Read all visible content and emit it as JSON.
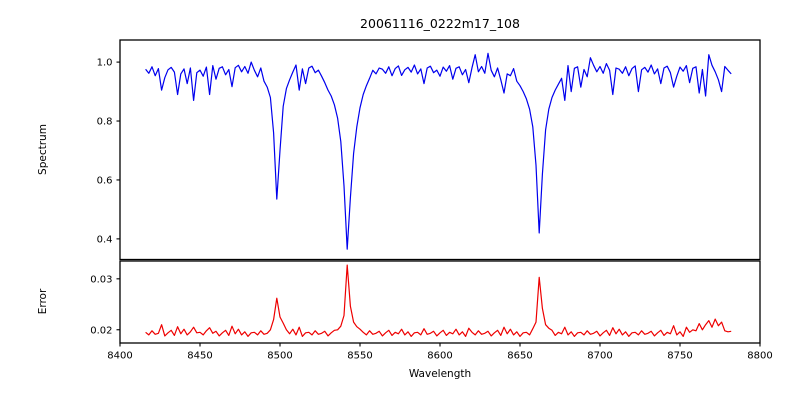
{
  "chart_data": {
    "type": "line",
    "title": "20061116_0222m17_108",
    "xlabel": "Wavelength",
    "xlim": [
      8400,
      8800
    ],
    "xticks": [
      8400,
      8450,
      8500,
      8550,
      8600,
      8650,
      8700,
      8750,
      8800
    ],
    "x_start": 8416,
    "x_step": 2,
    "grid": false,
    "legend": "none",
    "annotations": {
      "absorption_line_centers": [
        8498,
        8542,
        8662
      ],
      "absorption_line_minima": [
        0.535,
        0.365,
        0.42
      ],
      "error_peak_values": [
        0.0262,
        0.0327,
        0.0303
      ],
      "error_baseline": 0.0195,
      "spectrum_continuum": 0.97
    },
    "subplots": [
      {
        "name": "spectrum",
        "ylabel": "Spectrum",
        "color": "#0000ee",
        "ylim": [
          0.33,
          1.075
        ],
        "yticks": [
          {
            "v": 1.0,
            "label": "1.0"
          },
          {
            "v": 0.8,
            "label": "0.8"
          },
          {
            "v": 0.6,
            "label": "0.6"
          },
          {
            "v": 0.4,
            "label": "0.4"
          }
        ],
        "y": [
          0.976,
          0.962,
          0.984,
          0.954,
          0.978,
          0.905,
          0.947,
          0.974,
          0.982,
          0.966,
          0.89,
          0.96,
          0.977,
          0.927,
          0.98,
          0.87,
          0.964,
          0.973,
          0.952,
          0.983,
          0.89,
          0.988,
          0.942,
          0.979,
          0.984,
          0.957,
          0.975,
          0.917,
          0.981,
          0.989,
          0.967,
          0.985,
          0.962,
          1.0,
          0.972,
          0.95,
          0.98,
          0.935,
          0.915,
          0.88,
          0.76,
          0.535,
          0.7,
          0.85,
          0.91,
          0.94,
          0.966,
          0.99,
          0.905,
          0.977,
          0.927,
          0.98,
          0.986,
          0.964,
          0.973,
          0.952,
          0.93,
          0.905,
          0.885,
          0.855,
          0.81,
          0.73,
          0.58,
          0.365,
          0.54,
          0.69,
          0.78,
          0.845,
          0.89,
          0.92,
          0.945,
          0.972,
          0.96,
          0.98,
          0.976,
          0.962,
          0.984,
          0.954,
          0.978,
          0.987,
          0.955,
          0.974,
          0.982,
          0.966,
          0.99,
          0.96,
          0.977,
          0.927,
          0.98,
          0.986,
          0.964,
          0.973,
          0.952,
          0.983,
          0.969,
          0.988,
          0.942,
          0.979,
          0.984,
          0.957,
          0.975,
          0.93,
          0.981,
          1.025,
          0.967,
          0.985,
          0.962,
          1.03,
          0.972,
          0.95,
          0.98,
          0.94,
          0.895,
          0.96,
          0.954,
          0.978,
          0.935,
          0.92,
          0.9,
          0.875,
          0.84,
          0.78,
          0.65,
          0.42,
          0.62,
          0.77,
          0.84,
          0.88,
          0.905,
          0.925,
          0.945,
          0.87,
          0.988,
          0.9,
          0.979,
          0.984,
          0.915,
          0.975,
          0.95,
          1.015,
          0.989,
          0.967,
          0.985,
          0.962,
          0.995,
          0.972,
          0.89,
          0.98,
          0.976,
          0.962,
          0.984,
          0.954,
          0.978,
          0.987,
          0.9,
          0.974,
          0.982,
          0.966,
          0.99,
          0.96,
          0.977,
          0.927,
          0.98,
          0.986,
          0.964,
          0.915,
          0.952,
          0.983,
          0.969,
          0.988,
          0.93,
          0.979,
          0.984,
          0.895,
          0.975,
          0.885,
          1.025,
          0.989,
          0.967,
          0.94,
          0.9,
          0.985,
          0.972,
          0.96
        ]
      },
      {
        "name": "error",
        "ylabel": "Error",
        "color": "#ee0000",
        "ylim": [
          0.0174,
          0.0335
        ],
        "yticks": [
          {
            "v": 0.03,
            "label": "0.03"
          },
          {
            "v": 0.02,
            "label": "0.02"
          }
        ],
        "y": [
          0.0195,
          0.019,
          0.0198,
          0.0191,
          0.0193,
          0.021,
          0.0188,
          0.0194,
          0.0199,
          0.0189,
          0.0206,
          0.0192,
          0.0201,
          0.019,
          0.0196,
          0.0205,
          0.0194,
          0.0195,
          0.019,
          0.0198,
          0.0204,
          0.0193,
          0.0197,
          0.0188,
          0.0194,
          0.0199,
          0.0189,
          0.0207,
          0.0192,
          0.0201,
          0.019,
          0.0196,
          0.0187,
          0.0194,
          0.0195,
          0.019,
          0.0198,
          0.0191,
          0.0193,
          0.02,
          0.022,
          0.0262,
          0.0225,
          0.0213,
          0.02,
          0.0192,
          0.0201,
          0.019,
          0.0205,
          0.0187,
          0.0194,
          0.0195,
          0.019,
          0.0198,
          0.0191,
          0.0193,
          0.0197,
          0.0188,
          0.0194,
          0.0199,
          0.02,
          0.0207,
          0.0228,
          0.0327,
          0.0246,
          0.0215,
          0.0206,
          0.0201,
          0.0195,
          0.019,
          0.0198,
          0.0191,
          0.0193,
          0.0197,
          0.0188,
          0.0194,
          0.0199,
          0.0189,
          0.0195,
          0.0192,
          0.0201,
          0.019,
          0.0196,
          0.0187,
          0.0194,
          0.0195,
          0.019,
          0.0202,
          0.0191,
          0.0193,
          0.0197,
          0.0188,
          0.0194,
          0.0199,
          0.0189,
          0.0195,
          0.0192,
          0.0201,
          0.019,
          0.0196,
          0.0187,
          0.0203,
          0.0195,
          0.019,
          0.0198,
          0.0191,
          0.0193,
          0.0197,
          0.0188,
          0.0194,
          0.0199,
          0.0189,
          0.0205,
          0.0192,
          0.0201,
          0.019,
          0.0196,
          0.0187,
          0.0194,
          0.0195,
          0.019,
          0.0202,
          0.0215,
          0.0303,
          0.0242,
          0.021,
          0.0203,
          0.0199,
          0.0189,
          0.0195,
          0.0192,
          0.0205,
          0.019,
          0.0196,
          0.0187,
          0.0194,
          0.0195,
          0.019,
          0.0198,
          0.0191,
          0.0193,
          0.0197,
          0.0188,
          0.0194,
          0.0199,
          0.0189,
          0.0204,
          0.0192,
          0.0201,
          0.019,
          0.0196,
          0.0187,
          0.0194,
          0.0195,
          0.019,
          0.0198,
          0.0191,
          0.0193,
          0.0197,
          0.0188,
          0.0194,
          0.0199,
          0.0189,
          0.0195,
          0.0192,
          0.0208,
          0.019,
          0.0196,
          0.0187,
          0.0205,
          0.0195,
          0.02,
          0.0198,
          0.0212,
          0.02,
          0.021,
          0.0218,
          0.0205,
          0.0221,
          0.0208,
          0.0215,
          0.0198,
          0.0196,
          0.0197
        ]
      }
    ]
  }
}
